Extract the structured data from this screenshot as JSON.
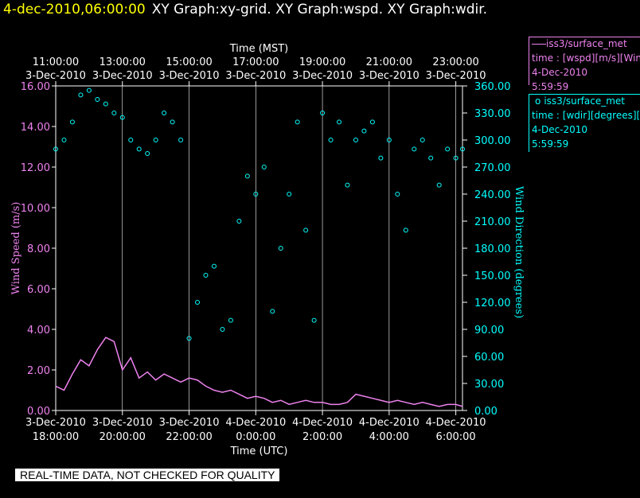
{
  "header": {
    "date": "4-dec-2010,06:00:00",
    "graphs": "XY Graph:xy-grid.  XY Graph:wspd.  XY Graph:wdir."
  },
  "legend": {
    "wspd": {
      "name": "iss3/surface_met",
      "var": "time : [wspd][m/s][Wind",
      "date": "4-Dec-2010",
      "time": "5:59:59"
    },
    "wdir": {
      "name": "iss3/surface_met",
      "var": "time : [wdir][degrees][V",
      "date": "4-Dec-2010",
      "time": "5:59:59"
    }
  },
  "footer_note": "REAL-TIME DATA, NOT CHECKED FOR QUALITY",
  "colors": {
    "wspd": "#ee82ee",
    "wdir": "#00ffff",
    "background": "#000000",
    "grid": "#ffffff"
  },
  "chart_data": {
    "type": "line",
    "top_axis": {
      "label": "Time (MST)",
      "ticks": [
        {
          "h": 0,
          "time": "11:00:00",
          "date": "3-Dec-2010"
        },
        {
          "h": 2,
          "time": "13:00:00",
          "date": "3-Dec-2010"
        },
        {
          "h": 4,
          "time": "15:00:00",
          "date": "3-Dec-2010"
        },
        {
          "h": 6,
          "time": "17:00:00",
          "date": "3-Dec-2010"
        },
        {
          "h": 8,
          "time": "19:00:00",
          "date": "3-Dec-2010"
        },
        {
          "h": 10,
          "time": "21:00:00",
          "date": "3-Dec-2010"
        },
        {
          "h": 12,
          "time": "23:00:00",
          "date": "3-Dec-2010"
        }
      ]
    },
    "bottom_axis": {
      "label": "Time (UTC)",
      "ticks": [
        {
          "h": 0,
          "time": "18:00:00",
          "date": "3-Dec-2010"
        },
        {
          "h": 2,
          "time": "20:00:00",
          "date": "3-Dec-2010"
        },
        {
          "h": 4,
          "time": "22:00:00",
          "date": "3-Dec-2010"
        },
        {
          "h": 6,
          "time": "0:00:00",
          "date": "4-Dec-2010"
        },
        {
          "h": 8,
          "time": "2:00:00",
          "date": "4-Dec-2010"
        },
        {
          "h": 10,
          "time": "4:00:00",
          "date": "4-Dec-2010"
        },
        {
          "h": 12,
          "time": "6:00:00",
          "date": "4-Dec-2010"
        }
      ]
    },
    "xlim": [
      0,
      12.2
    ],
    "left_axis": {
      "label": "Wind Speed (m/s)",
      "ylim": [
        0,
        16
      ],
      "ticks": [
        "0.00",
        "2.00",
        "4.00",
        "6.00",
        "8.00",
        "10.00",
        "12.00",
        "14.00",
        "16.00"
      ]
    },
    "right_axis": {
      "label": "Wind Direction (degrees)",
      "ylim": [
        0,
        360
      ],
      "ticks": [
        "0.00",
        "30.00",
        "60.00",
        "90.00",
        "120.00",
        "150.00",
        "180.00",
        "210.00",
        "240.00",
        "270.00",
        "300.00",
        "330.00",
        "360.00"
      ]
    },
    "grid": true,
    "series": [
      {
        "name": "iss3/surface_met wspd",
        "axis": "left",
        "style": "line",
        "x": [
          0,
          0.25,
          0.5,
          0.75,
          1.0,
          1.25,
          1.5,
          1.75,
          2.0,
          2.25,
          2.5,
          2.75,
          3.0,
          3.25,
          3.5,
          3.75,
          4.0,
          4.25,
          4.5,
          4.75,
          5.0,
          5.25,
          5.5,
          5.75,
          6.0,
          6.25,
          6.5,
          6.75,
          7.0,
          7.25,
          7.5,
          7.75,
          8.0,
          8.25,
          8.5,
          8.75,
          9.0,
          9.25,
          9.5,
          9.75,
          10.0,
          10.25,
          10.5,
          10.75,
          11.0,
          11.25,
          11.5,
          11.75,
          12.0,
          12.2
        ],
        "y": [
          1.2,
          1.0,
          1.8,
          2.5,
          2.2,
          3.0,
          3.6,
          3.4,
          2.0,
          2.6,
          1.6,
          1.9,
          1.5,
          1.8,
          1.6,
          1.4,
          1.6,
          1.5,
          1.2,
          1.0,
          0.9,
          1.0,
          0.8,
          0.6,
          0.7,
          0.6,
          0.4,
          0.5,
          0.3,
          0.4,
          0.5,
          0.4,
          0.4,
          0.3,
          0.3,
          0.4,
          0.8,
          0.7,
          0.6,
          0.5,
          0.4,
          0.5,
          0.4,
          0.3,
          0.4,
          0.3,
          0.2,
          0.3,
          0.3,
          0.2
        ]
      },
      {
        "name": "iss3/surface_met wdir",
        "axis": "right",
        "style": "markers",
        "x": [
          0,
          0.25,
          0.5,
          0.75,
          1.0,
          1.25,
          1.5,
          1.75,
          2.0,
          2.25,
          2.5,
          2.75,
          3.0,
          3.25,
          3.5,
          3.75,
          4.0,
          4.25,
          4.5,
          4.75,
          5.0,
          5.25,
          5.5,
          5.75,
          6.0,
          6.25,
          6.5,
          6.75,
          7.0,
          7.25,
          7.5,
          7.75,
          8.0,
          8.25,
          8.5,
          8.75,
          9.0,
          9.25,
          9.5,
          9.75,
          10.0,
          10.25,
          10.5,
          10.75,
          11.0,
          11.25,
          11.5,
          11.75,
          12.0,
          12.2
        ],
        "y": [
          290,
          300,
          320,
          350,
          355,
          345,
          340,
          330,
          325,
          300,
          290,
          285,
          300,
          330,
          320,
          300,
          80,
          120,
          150,
          160,
          90,
          100,
          210,
          260,
          240,
          270,
          110,
          180,
          240,
          320,
          200,
          100,
          330,
          300,
          320,
          250,
          300,
          310,
          320,
          280,
          300,
          240,
          200,
          290,
          300,
          280,
          250,
          290,
          280,
          290
        ]
      }
    ]
  }
}
